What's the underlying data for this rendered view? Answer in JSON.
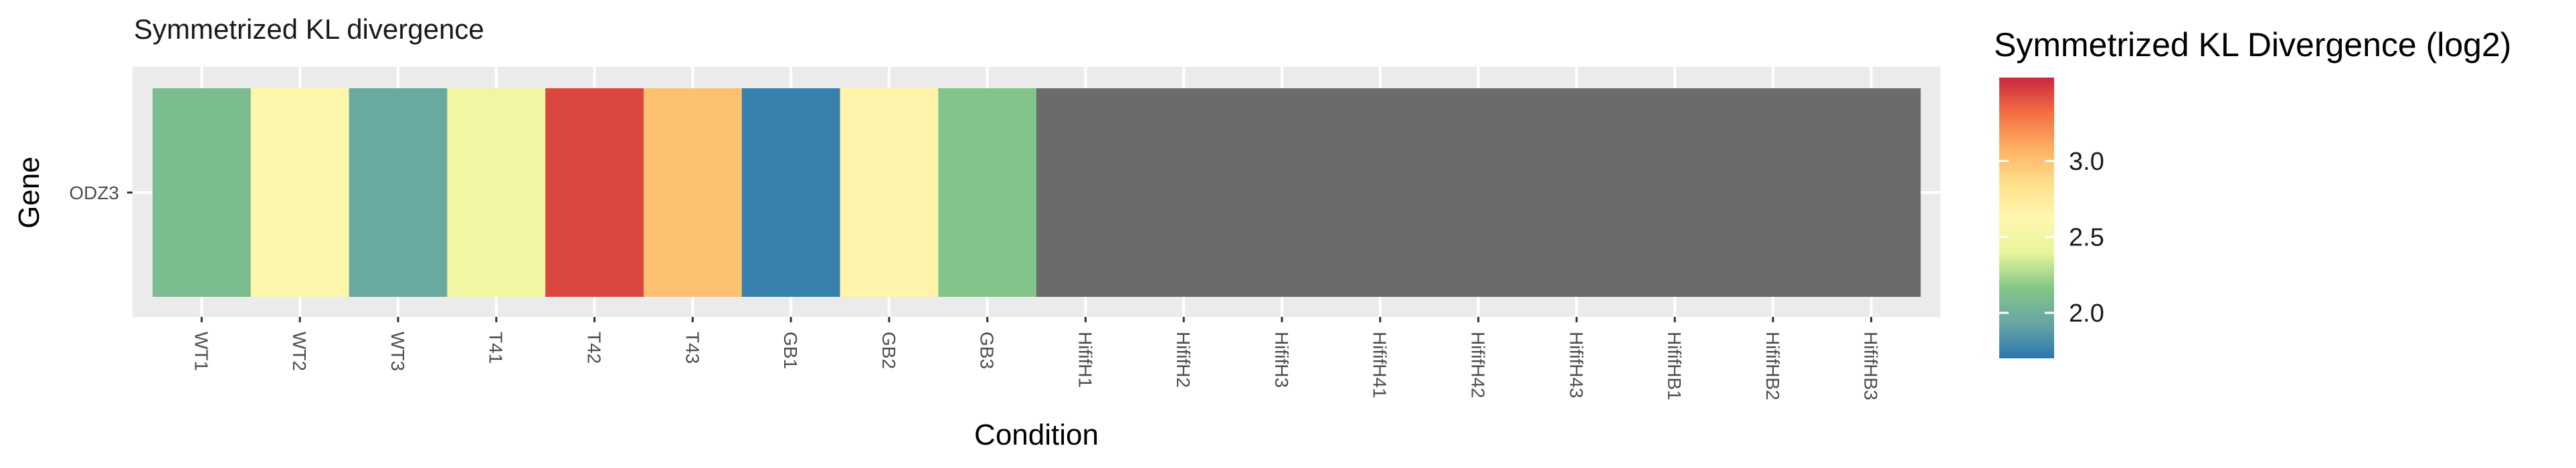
{
  "chart_data": {
    "type": "heatmap",
    "title": "Symmetrized KL divergence",
    "xlabel": "Condition",
    "ylabel": "Gene",
    "rows": [
      "ODZ3"
    ],
    "columns": [
      "WT1",
      "WT2",
      "WT3",
      "T41",
      "T42",
      "T43",
      "GB1",
      "GB2",
      "GB3",
      "HififH1",
      "HififH2",
      "HififH3",
      "HififH41",
      "HififH42",
      "HififH43",
      "HififHB1",
      "HififHB2",
      "HififHB3"
    ],
    "values": [
      [
        2.1,
        2.6,
        1.95,
        2.5,
        3.45,
        3.0,
        1.75,
        2.65,
        2.15,
        null,
        null,
        null,
        null,
        null,
        null,
        null,
        null,
        null
      ]
    ],
    "na_color": "#6b6b6b",
    "legend": {
      "title": "Symmetrized KL Divergence (log2)",
      "position": "right",
      "ticks": [
        2.0,
        2.5,
        3.0
      ],
      "tick_labels": [
        "2.0",
        "2.5",
        "3.0"
      ],
      "range": [
        1.7,
        3.55
      ],
      "palette": "Spectral",
      "colors": [
        "#2b76b0",
        "#67a6a2",
        "#84c688",
        "#e6f59a",
        "#fff7ad",
        "#fedf8b",
        "#fdae61",
        "#f46d43",
        "#c9283d"
      ]
    },
    "grid": true,
    "panel_color": "#ebebeb"
  }
}
